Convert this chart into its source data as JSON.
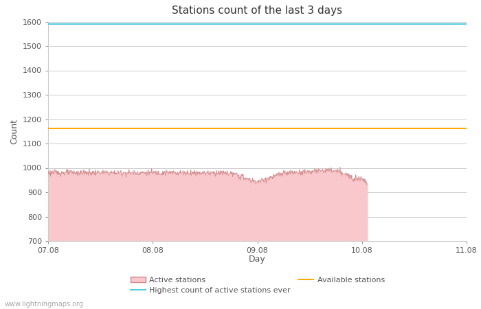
{
  "title": "Stations count of the last 3 days",
  "ylabel": "Count",
  "xlabel": "Day",
  "ylim": [
    700,
    1600
  ],
  "yticks": [
    700,
    800,
    900,
    1000,
    1100,
    1200,
    1300,
    1400,
    1500,
    1600
  ],
  "x_start": 0.0,
  "x_end": 4.0,
  "xtick_positions": [
    0.0,
    1.0,
    2.0,
    3.0,
    4.0
  ],
  "xtick_labels": [
    "07.08",
    "08.08",
    "09.08",
    "10.08",
    "11.08"
  ],
  "highest_count_ever": 1590,
  "highest_count_color": "#55ccdd",
  "available_stations_value": 1163,
  "available_stations_color": "#ffaa00",
  "active_stations_fill_color": "#f9c8cc",
  "active_stations_line_color": "#cc8888",
  "watermark": "www.lightningmaps.org",
  "background_color": "#ffffff",
  "grid_color": "#cccccc",
  "title_fontsize": 11,
  "axis_fontsize": 9,
  "tick_fontsize": 8,
  "legend_fontsize": 8
}
